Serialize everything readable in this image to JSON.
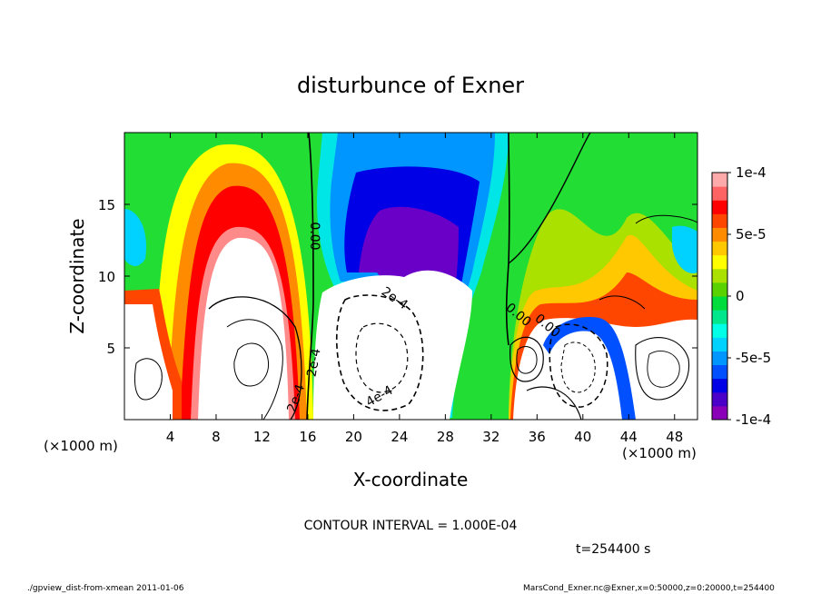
{
  "chart_data": {
    "type": "heatmap",
    "title": "disturbunce of Exner",
    "xlabel": "X-coordinate",
    "ylabel": "Z-coordinate",
    "x_unit": "(×1000 m)",
    "x_unit_right": "(×1000 m)",
    "xlim": [
      0,
      50
    ],
    "ylim": [
      0,
      20
    ],
    "x_ticks": [
      "4",
      "8",
      "12",
      "16",
      "20",
      "24",
      "28",
      "32",
      "36",
      "40",
      "44",
      "48"
    ],
    "x_tick_values": [
      4,
      8,
      12,
      16,
      20,
      24,
      28,
      32,
      36,
      40,
      44,
      48
    ],
    "y_ticks": [
      "5",
      "10",
      "15"
    ],
    "y_tick_values": [
      5,
      10,
      15
    ],
    "colorbar": {
      "min": -0.0001,
      "max": 0.0001,
      "labels": [
        "1e-4",
        "5e-5",
        "0",
        "-5e-5",
        "-1e-4"
      ],
      "label_values": [
        0.0001,
        5e-05,
        0,
        -5e-05,
        -0.0001
      ],
      "colors": [
        "#8a00b8",
        "#4a00c8",
        "#0000e6",
        "#0050ff",
        "#0096ff",
        "#00d2ff",
        "#00ffe6",
        "#00e68c",
        "#00dc3c",
        "#5ad200",
        "#aae100",
        "#ffff00",
        "#ffc800",
        "#ff8c00",
        "#ff4600",
        "#ff0000",
        "#ff6464",
        "#ffaaaa"
      ]
    },
    "contour_labels": [
      "0.00",
      "0.00",
      "2e-4",
      "2e-4",
      "4e-4",
      "2e-4",
      "0.00"
    ],
    "contour_interval_label": "CONTOUR INTERVAL = 1.000E-04",
    "time_label": "t=254400 s",
    "footer_left": "./gpview_dist-from-xmean  2011-01-06",
    "footer_right": "MarsCond_Exner.nc@Exner,x=0:50000,z=0:20000,t=254400"
  }
}
